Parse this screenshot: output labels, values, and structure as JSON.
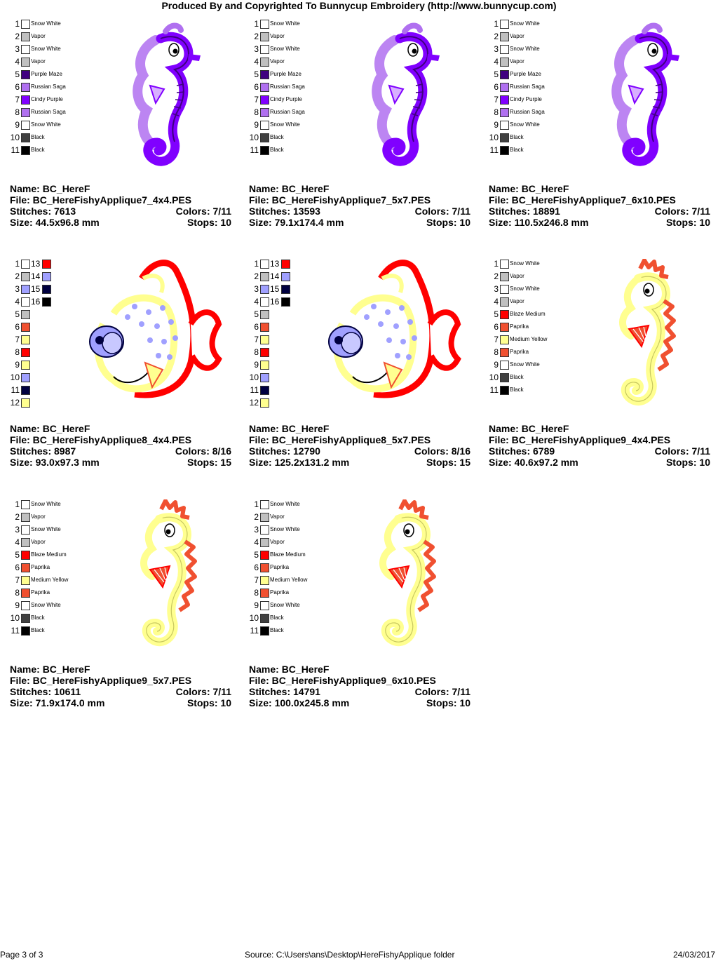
{
  "header": "Produced By and Copyrighted To Bunnycup Embroidery (http://www.bunnycup.com)",
  "labels": {
    "name": "Name:",
    "file": "File:",
    "stitches": "Stitches:",
    "colors": "Colors:",
    "size": "Size:",
    "stops": "Stops:"
  },
  "designs": [
    {
      "name": "BC_HereF",
      "file": "BC_HereFishyApplique7_4x4.PES",
      "stitches": "7613",
      "colors": "7/11",
      "size": "44.5x96.8 mm",
      "stops": "10",
      "art": "seahorse-purple",
      "legend": [
        {
          "n": "1",
          "c": "#ffffff",
          "t": "Snow White"
        },
        {
          "n": "2",
          "c": "#c0c0c0",
          "t": "Vapor"
        },
        {
          "n": "3",
          "c": "#ffffff",
          "t": "Snow White"
        },
        {
          "n": "4",
          "c": "#c0c0c0",
          "t": "Vapor"
        },
        {
          "n": "5",
          "c": "#400080",
          "t": "Purple Maze"
        },
        {
          "n": "6",
          "c": "#b070f0",
          "t": "Russian Saga"
        },
        {
          "n": "7",
          "c": "#8000ff",
          "t": "Cindy Purple"
        },
        {
          "n": "8",
          "c": "#b070f0",
          "t": "Russian Saga"
        },
        {
          "n": "9",
          "c": "#ffffff",
          "t": "Snow White"
        },
        {
          "n": "10",
          "c": "#404040",
          "t": "Black"
        },
        {
          "n": "11",
          "c": "#000000",
          "t": "Black"
        }
      ]
    },
    {
      "name": "BC_HereF",
      "file": "BC_HereFishyApplique7_5x7.PES",
      "stitches": "13593",
      "colors": "7/11",
      "size": "79.1x174.4 mm",
      "stops": "10",
      "art": "seahorse-purple",
      "legend": [
        {
          "n": "1",
          "c": "#ffffff",
          "t": "Snow White"
        },
        {
          "n": "2",
          "c": "#c0c0c0",
          "t": "Vapor"
        },
        {
          "n": "3",
          "c": "#ffffff",
          "t": "Snow White"
        },
        {
          "n": "4",
          "c": "#c0c0c0",
          "t": "Vapor"
        },
        {
          "n": "5",
          "c": "#400080",
          "t": "Purple Maze"
        },
        {
          "n": "6",
          "c": "#b070f0",
          "t": "Russian Saga"
        },
        {
          "n": "7",
          "c": "#8000ff",
          "t": "Cindy Purple"
        },
        {
          "n": "8",
          "c": "#b070f0",
          "t": "Russian Saga"
        },
        {
          "n": "9",
          "c": "#ffffff",
          "t": "Snow White"
        },
        {
          "n": "10",
          "c": "#404040",
          "t": "Black"
        },
        {
          "n": "11",
          "c": "#000000",
          "t": "Black"
        }
      ]
    },
    {
      "name": "BC_HereF",
      "file": "BC_HereFishyApplique7_6x10.PES",
      "stitches": "18891",
      "colors": "7/11",
      "size": "110.5x246.8 mm",
      "stops": "10",
      "art": "seahorse-purple",
      "legend": [
        {
          "n": "1",
          "c": "#ffffff",
          "t": "Snow White"
        },
        {
          "n": "2",
          "c": "#c0c0c0",
          "t": "Vapor"
        },
        {
          "n": "3",
          "c": "#ffffff",
          "t": "Snow White"
        },
        {
          "n": "4",
          "c": "#c0c0c0",
          "t": "Vapor"
        },
        {
          "n": "5",
          "c": "#400080",
          "t": "Purple Maze"
        },
        {
          "n": "6",
          "c": "#b070f0",
          "t": "Russian Saga"
        },
        {
          "n": "7",
          "c": "#8000ff",
          "t": "Cindy Purple"
        },
        {
          "n": "8",
          "c": "#b070f0",
          "t": "Russian Saga"
        },
        {
          "n": "9",
          "c": "#ffffff",
          "t": "Snow White"
        },
        {
          "n": "10",
          "c": "#404040",
          "t": "Black"
        },
        {
          "n": "11",
          "c": "#000000",
          "t": "Black"
        }
      ]
    },
    {
      "name": "BC_HereF",
      "file": "BC_HereFishyApplique8_4x4.PES",
      "stitches": "8987",
      "colors": "8/16",
      "size": "93.0x97.3 mm",
      "stops": "15",
      "art": "fish",
      "legend": [
        {
          "n": "1",
          "c": "#ffffff",
          "n2": "13",
          "c2": "#ff0000"
        },
        {
          "n": "2",
          "c": "#c0c0c0",
          "n2": "14",
          "c2": "#a0a0ff"
        },
        {
          "n": "3",
          "c": "#a0a0ff",
          "n2": "15",
          "c2": "#000040"
        },
        {
          "n": "4",
          "c": "#ffffff",
          "n2": "16",
          "c2": "#000000"
        },
        {
          "n": "5",
          "c": "#c0c0c0"
        },
        {
          "n": "6",
          "c": "#f05030"
        },
        {
          "n": "7",
          "c": "#ffff90"
        },
        {
          "n": "8",
          "c": "#ff0000"
        },
        {
          "n": "9",
          "c": "#ffff90"
        },
        {
          "n": "10",
          "c": "#a0a0ff"
        },
        {
          "n": "11",
          "c": "#000040"
        },
        {
          "n": "12",
          "c": "#ffff90"
        }
      ]
    },
    {
      "name": "BC_HereF",
      "file": "BC_HereFishyApplique8_5x7.PES",
      "stitches": "12790",
      "colors": "8/16",
      "size": "125.2x131.2 mm",
      "stops": "15",
      "art": "fish",
      "legend": [
        {
          "n": "1",
          "c": "#ffffff",
          "n2": "13",
          "c2": "#ff0000"
        },
        {
          "n": "2",
          "c": "#c0c0c0",
          "n2": "14",
          "c2": "#a0a0ff"
        },
        {
          "n": "3",
          "c": "#a0a0ff",
          "n2": "15",
          "c2": "#000040"
        },
        {
          "n": "4",
          "c": "#ffffff",
          "n2": "16",
          "c2": "#000000"
        },
        {
          "n": "5",
          "c": "#c0c0c0"
        },
        {
          "n": "6",
          "c": "#f05030"
        },
        {
          "n": "7",
          "c": "#ffff90"
        },
        {
          "n": "8",
          "c": "#ff0000"
        },
        {
          "n": "9",
          "c": "#ffff90"
        },
        {
          "n": "10",
          "c": "#a0a0ff"
        },
        {
          "n": "11",
          "c": "#000040"
        },
        {
          "n": "12",
          "c": "#ffff90"
        }
      ]
    },
    {
      "name": "BC_HereF",
      "file": "BC_HereFishyApplique9_4x4.PES",
      "stitches": "6789",
      "colors": "7/11",
      "size": "40.6x97.2 mm",
      "stops": "10",
      "art": "seahorse-yellow",
      "legend": [
        {
          "n": "1",
          "c": "#ffffff",
          "t": "Snow White"
        },
        {
          "n": "2",
          "c": "#c0c0c0",
          "t": "Vapor"
        },
        {
          "n": "3",
          "c": "#ffffff",
          "t": "Snow White"
        },
        {
          "n": "4",
          "c": "#c0c0c0",
          "t": "Vapor"
        },
        {
          "n": "5",
          "c": "#ff0000",
          "t": "Blaze Medium"
        },
        {
          "n": "6",
          "c": "#f05030",
          "t": "Paprika"
        },
        {
          "n": "7",
          "c": "#ffff90",
          "t": "Medium Yellow"
        },
        {
          "n": "8",
          "c": "#f05030",
          "t": "Paprika"
        },
        {
          "n": "9",
          "c": "#ffffff",
          "t": "Snow White"
        },
        {
          "n": "10",
          "c": "#404040",
          "t": "Black"
        },
        {
          "n": "11",
          "c": "#000000",
          "t": "Black"
        }
      ]
    },
    {
      "name": "BC_HereF",
      "file": "BC_HereFishyApplique9_5x7.PES",
      "stitches": "10611",
      "colors": "7/11",
      "size": "71.9x174.0 mm",
      "stops": "10",
      "art": "seahorse-yellow",
      "legend": [
        {
          "n": "1",
          "c": "#ffffff",
          "t": "Snow White"
        },
        {
          "n": "2",
          "c": "#c0c0c0",
          "t": "Vapor"
        },
        {
          "n": "3",
          "c": "#ffffff",
          "t": "Snow White"
        },
        {
          "n": "4",
          "c": "#c0c0c0",
          "t": "Vapor"
        },
        {
          "n": "5",
          "c": "#ff0000",
          "t": "Blaze Medium"
        },
        {
          "n": "6",
          "c": "#f05030",
          "t": "Paprika"
        },
        {
          "n": "7",
          "c": "#ffff90",
          "t": "Medium Yellow"
        },
        {
          "n": "8",
          "c": "#f05030",
          "t": "Paprika"
        },
        {
          "n": "9",
          "c": "#ffffff",
          "t": "Snow White"
        },
        {
          "n": "10",
          "c": "#404040",
          "t": "Black"
        },
        {
          "n": "11",
          "c": "#000000",
          "t": "Black"
        }
      ]
    },
    {
      "name": "BC_HereF",
      "file": "BC_HereFishyApplique9_6x10.PES",
      "stitches": "14791",
      "colors": "7/11",
      "size": "100.0x245.8 mm",
      "stops": "10",
      "art": "seahorse-yellow",
      "legend": [
        {
          "n": "1",
          "c": "#ffffff",
          "t": "Snow White"
        },
        {
          "n": "2",
          "c": "#c0c0c0",
          "t": "Vapor"
        },
        {
          "n": "3",
          "c": "#ffffff",
          "t": "Snow White"
        },
        {
          "n": "4",
          "c": "#c0c0c0",
          "t": "Vapor"
        },
        {
          "n": "5",
          "c": "#ff0000",
          "t": "Blaze Medium"
        },
        {
          "n": "6",
          "c": "#f05030",
          "t": "Paprika"
        },
        {
          "n": "7",
          "c": "#ffff90",
          "t": "Medium Yellow"
        },
        {
          "n": "8",
          "c": "#f05030",
          "t": "Paprika"
        },
        {
          "n": "9",
          "c": "#ffffff",
          "t": "Snow White"
        },
        {
          "n": "10",
          "c": "#404040",
          "t": "Black"
        },
        {
          "n": "11",
          "c": "#000000",
          "t": "Black"
        }
      ]
    }
  ],
  "footer": {
    "page": "Page 3 of 3",
    "source": "Source: C:\\Users\\ans\\Desktop\\HereFishyApplique folder",
    "date": "24/03/2017"
  }
}
